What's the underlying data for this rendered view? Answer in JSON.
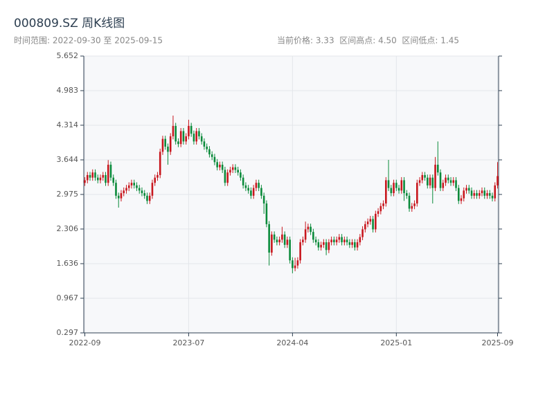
{
  "chart_data": {
    "type": "candlestick",
    "title": "000809.SZ 周K线图",
    "subtitle": "时间范围: 2022-09-30 至 2025-09-15",
    "info": "当前价格: 3.33  区间高点: 4.50  区间低点: 1.45",
    "up_color": "#c8161d",
    "down_color": "#0a8a3a",
    "grid": true,
    "ylim": [
      0.297,
      5.652
    ],
    "yticks": [
      0.297,
      0.967,
      1.636,
      2.306,
      2.975,
      3.644,
      4.314,
      4.983,
      5.652
    ],
    "categories": [
      "2022-09",
      null,
      null,
      null,
      null,
      null,
      null,
      null,
      null,
      null,
      null,
      null,
      null,
      null,
      null,
      null,
      null,
      null,
      null,
      null,
      null,
      null,
      null,
      null,
      null,
      null,
      null,
      null,
      null,
      null,
      null,
      null,
      null,
      null,
      null,
      null,
      null,
      null,
      null,
      null,
      "2023-07",
      null,
      null,
      null,
      null,
      null,
      null,
      null,
      null,
      null,
      null,
      null,
      null,
      null,
      null,
      null,
      null,
      null,
      null,
      null,
      null,
      null,
      null,
      null,
      null,
      null,
      null,
      null,
      null,
      null,
      null,
      null,
      null,
      null,
      null,
      null,
      null,
      null,
      null,
      null,
      "2024-04",
      null,
      null,
      null,
      null,
      null,
      null,
      null,
      null,
      null,
      null,
      null,
      null,
      null,
      null,
      null,
      null,
      null,
      null,
      null,
      null,
      null,
      null,
      null,
      null,
      null,
      null,
      null,
      null,
      null,
      null,
      null,
      null,
      null,
      null,
      null,
      null,
      null,
      null,
      null,
      "2025-01",
      null,
      null,
      null,
      null,
      null,
      null,
      null,
      null,
      null,
      null,
      null,
      null,
      null,
      null,
      null,
      null,
      null,
      null,
      null,
      null,
      null,
      null,
      null,
      null,
      null,
      null,
      null,
      null,
      null,
      null,
      null,
      null,
      null,
      null,
      null,
      null,
      null,
      null,
      "2025-09"
    ],
    "open": [
      3.2,
      3.25,
      3.35,
      3.3,
      3.4,
      3.3,
      3.25,
      3.3,
      3.35,
      3.2,
      3.55,
      3.3,
      3.2,
      2.95,
      2.9,
      3.0,
      3.05,
      3.1,
      3.15,
      3.2,
      3.15,
      3.1,
      3.05,
      3.0,
      2.95,
      2.85,
      2.95,
      3.2,
      3.3,
      3.35,
      3.8,
      4.05,
      3.9,
      3.8,
      4.1,
      4.3,
      4.0,
      3.95,
      4.2,
      4.0,
      4.1,
      4.3,
      4.15,
      4.0,
      4.2,
      4.1,
      4.0,
      3.9,
      3.85,
      3.75,
      3.7,
      3.6,
      3.5,
      3.55,
      3.45,
      3.2,
      3.4,
      3.45,
      3.5,
      3.45,
      3.4,
      3.3,
      3.15,
      3.1,
      3.05,
      2.95,
      3.1,
      3.2,
      3.1,
      2.95,
      2.8,
      2.4,
      1.85,
      2.2,
      2.1,
      2.05,
      2.1,
      2.2,
      2.0,
      2.1,
      1.7,
      1.55,
      1.6,
      1.7,
      2.05,
      2.1,
      2.3,
      2.35,
      2.25,
      2.1,
      2.05,
      1.95,
      2.0,
      2.05,
      1.9,
      2.05,
      2.1,
      2.05,
      2.1,
      2.15,
      2.05,
      2.1,
      2.05,
      2.0,
      2.05,
      1.95,
      2.05,
      2.15,
      2.3,
      2.4,
      2.45,
      2.5,
      2.3,
      2.6,
      2.65,
      2.75,
      2.8,
      3.25,
      3.1,
      3.0,
      3.2,
      3.1,
      3.05,
      3.25,
      3.0,
      2.95,
      2.7,
      2.75,
      2.8,
      3.2,
      3.25,
      3.35,
      3.3,
      3.15,
      3.3,
      3.1,
      3.55,
      3.4,
      3.1,
      3.2,
      3.3,
      3.25,
      3.2,
      3.25,
      3.1,
      2.85,
      2.9,
      3.05,
      3.1,
      3.05,
      2.95,
      3.0,
      2.95,
      3.0,
      3.05,
      2.95,
      3.0,
      2.95,
      2.9,
      3.15
    ],
    "high": [
      3.31,
      3.41,
      3.41,
      3.46,
      3.46,
      3.36,
      3.36,
      3.41,
      3.41,
      3.64,
      3.61,
      3.36,
      3.26,
      3.01,
      3.06,
      3.11,
      3.16,
      3.21,
      3.26,
      3.26,
      3.21,
      3.16,
      3.11,
      3.06,
      3.01,
      3.01,
      3.26,
      3.36,
      3.41,
      3.86,
      4.11,
      4.11,
      3.96,
      4.16,
      4.5,
      4.36,
      4.06,
      4.26,
      4.26,
      4.16,
      4.42,
      4.36,
      4.21,
      4.26,
      4.26,
      4.16,
      4.06,
      3.96,
      3.91,
      3.81,
      3.76,
      3.66,
      3.61,
      3.61,
      3.51,
      3.46,
      3.51,
      3.56,
      3.56,
      3.51,
      3.46,
      3.36,
      3.21,
      3.16,
      3.11,
      3.16,
      3.26,
      3.26,
      3.16,
      3.01,
      2.86,
      2.46,
      2.26,
      2.26,
      2.16,
      2.16,
      2.35,
      2.26,
      2.16,
      2.16,
      1.76,
      1.75,
      1.76,
      2.11,
      2.16,
      2.45,
      2.41,
      2.41,
      2.31,
      2.16,
      2.11,
      2.06,
      2.11,
      2.11,
      2.11,
      2.16,
      2.16,
      2.16,
      2.21,
      2.21,
      2.16,
      2.16,
      2.11,
      2.11,
      2.11,
      2.11,
      2.21,
      2.36,
      2.46,
      2.51,
      2.56,
      2.56,
      2.66,
      2.71,
      2.81,
      2.86,
      3.31,
      3.644,
      3.16,
      3.26,
      3.26,
      3.16,
      3.31,
      3.31,
      3.06,
      3.01,
      2.81,
      2.86,
      3.26,
      3.31,
      3.41,
      3.41,
      3.36,
      3.36,
      3.36,
      3.7,
      4.0,
      3.46,
      3.26,
      3.36,
      3.36,
      3.31,
      3.31,
      3.31,
      3.16,
      2.96,
      3.11,
      3.16,
      3.16,
      3.11,
      3.06,
      3.06,
      3.06,
      3.11,
      3.11,
      3.06,
      3.06,
      3.01,
      3.21,
      3.6
    ],
    "low": [
      3.14,
      3.19,
      3.24,
      3.24,
      3.24,
      3.19,
      3.19,
      3.24,
      3.14,
      3.14,
      3.24,
      3.14,
      2.89,
      2.72,
      2.84,
      2.94,
      2.99,
      3.04,
      3.09,
      3.09,
      3.04,
      2.99,
      2.94,
      2.89,
      2.79,
      2.79,
      2.89,
      3.14,
      3.24,
      3.29,
      3.74,
      3.84,
      3.55,
      3.74,
      4.04,
      3.94,
      3.89,
      3.89,
      3.94,
      3.94,
      4.04,
      4.09,
      3.94,
      3.94,
      4.04,
      3.94,
      3.84,
      3.79,
      3.69,
      3.64,
      3.54,
      3.44,
      3.44,
      3.39,
      3.14,
      3.14,
      3.34,
      3.39,
      3.39,
      3.34,
      3.24,
      3.09,
      3.04,
      2.99,
      2.89,
      2.89,
      3.04,
      3.04,
      2.89,
      2.6,
      2.34,
      1.6,
      1.79,
      2.04,
      1.99,
      1.99,
      2.04,
      1.94,
      1.94,
      1.64,
      1.45,
      1.49,
      1.54,
      1.64,
      1.99,
      2.04,
      2.24,
      2.19,
      2.04,
      1.99,
      1.89,
      1.89,
      1.94,
      1.8,
      1.84,
      1.99,
      1.99,
      1.99,
      2.04,
      1.99,
      1.99,
      1.99,
      1.94,
      1.94,
      1.89,
      1.89,
      1.99,
      2.09,
      2.24,
      2.34,
      2.39,
      2.24,
      2.24,
      2.54,
      2.59,
      2.69,
      2.74,
      3.04,
      2.94,
      2.94,
      3.04,
      2.99,
      2.99,
      2.85,
      2.89,
      2.64,
      2.64,
      2.69,
      2.74,
      3.14,
      3.19,
      3.24,
      3.09,
      3.09,
      2.8,
      3.04,
      3.34,
      3.04,
      3.04,
      3.14,
      3.19,
      3.14,
      3.14,
      3.04,
      2.79,
      2.79,
      2.84,
      2.99,
      2.99,
      2.89,
      2.89,
      2.89,
      2.89,
      2.94,
      2.89,
      2.89,
      2.89,
      2.84,
      2.84,
      3.09
    ],
    "close": [
      3.25,
      3.35,
      3.3,
      3.4,
      3.3,
      3.25,
      3.3,
      3.35,
      3.2,
      3.55,
      3.3,
      3.2,
      2.95,
      2.9,
      3.0,
      3.05,
      3.1,
      3.15,
      3.2,
      3.15,
      3.1,
      3.05,
      3.0,
      2.95,
      2.85,
      2.95,
      3.2,
      3.3,
      3.35,
      3.8,
      4.05,
      3.9,
      3.8,
      4.1,
      4.3,
      4.0,
      3.95,
      4.2,
      4.0,
      4.1,
      4.3,
      4.15,
      4.0,
      4.2,
      4.1,
      4.0,
      3.9,
      3.85,
      3.75,
      3.7,
      3.6,
      3.5,
      3.55,
      3.45,
      3.2,
      3.4,
      3.45,
      3.5,
      3.45,
      3.4,
      3.3,
      3.15,
      3.1,
      3.05,
      2.95,
      3.1,
      3.2,
      3.1,
      2.95,
      2.8,
      2.4,
      1.85,
      2.2,
      2.1,
      2.05,
      2.1,
      2.2,
      2.0,
      2.1,
      1.7,
      1.55,
      1.6,
      1.7,
      2.05,
      2.1,
      2.3,
      2.35,
      2.25,
      2.1,
      2.05,
      1.95,
      2.0,
      2.05,
      1.9,
      2.05,
      2.1,
      2.05,
      2.1,
      2.15,
      2.05,
      2.1,
      2.05,
      2.0,
      2.05,
      1.95,
      2.05,
      2.15,
      2.3,
      2.4,
      2.45,
      2.5,
      2.3,
      2.6,
      2.65,
      2.75,
      2.8,
      3.25,
      3.1,
      3.0,
      3.2,
      3.1,
      3.05,
      3.25,
      3.0,
      2.95,
      2.7,
      2.75,
      2.8,
      3.2,
      3.25,
      3.35,
      3.3,
      3.15,
      3.3,
      3.1,
      3.55,
      3.4,
      3.1,
      3.2,
      3.3,
      3.25,
      3.2,
      3.25,
      3.1,
      2.85,
      2.9,
      3.05,
      3.1,
      3.05,
      2.95,
      3.0,
      2.95,
      3.0,
      3.05,
      2.95,
      3.0,
      2.95,
      2.9,
      3.15,
      3.33
    ]
  }
}
